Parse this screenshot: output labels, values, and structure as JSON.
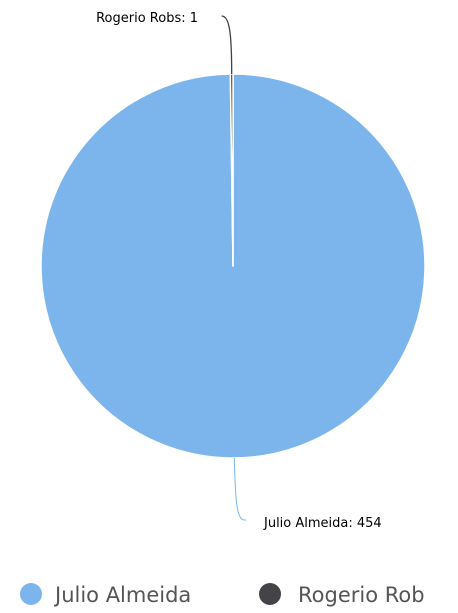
{
  "chart_data": {
    "type": "pie",
    "title": "",
    "series": [
      {
        "name": "Julio Almeida",
        "value": 454,
        "color": "#7cb5ec"
      },
      {
        "name": "Rogerio Robs",
        "value": 1,
        "color": "#434348"
      }
    ],
    "data_labels": [
      {
        "text": "Julio Almeida: 454"
      },
      {
        "text": "Rogerio Robs: 1"
      }
    ],
    "legend": {
      "placement": "bottom",
      "items": [
        {
          "label": "Julio Almeida",
          "color": "#7cb5ec"
        },
        {
          "label": "Rogerio Rob",
          "color": "#434348"
        }
      ]
    }
  }
}
